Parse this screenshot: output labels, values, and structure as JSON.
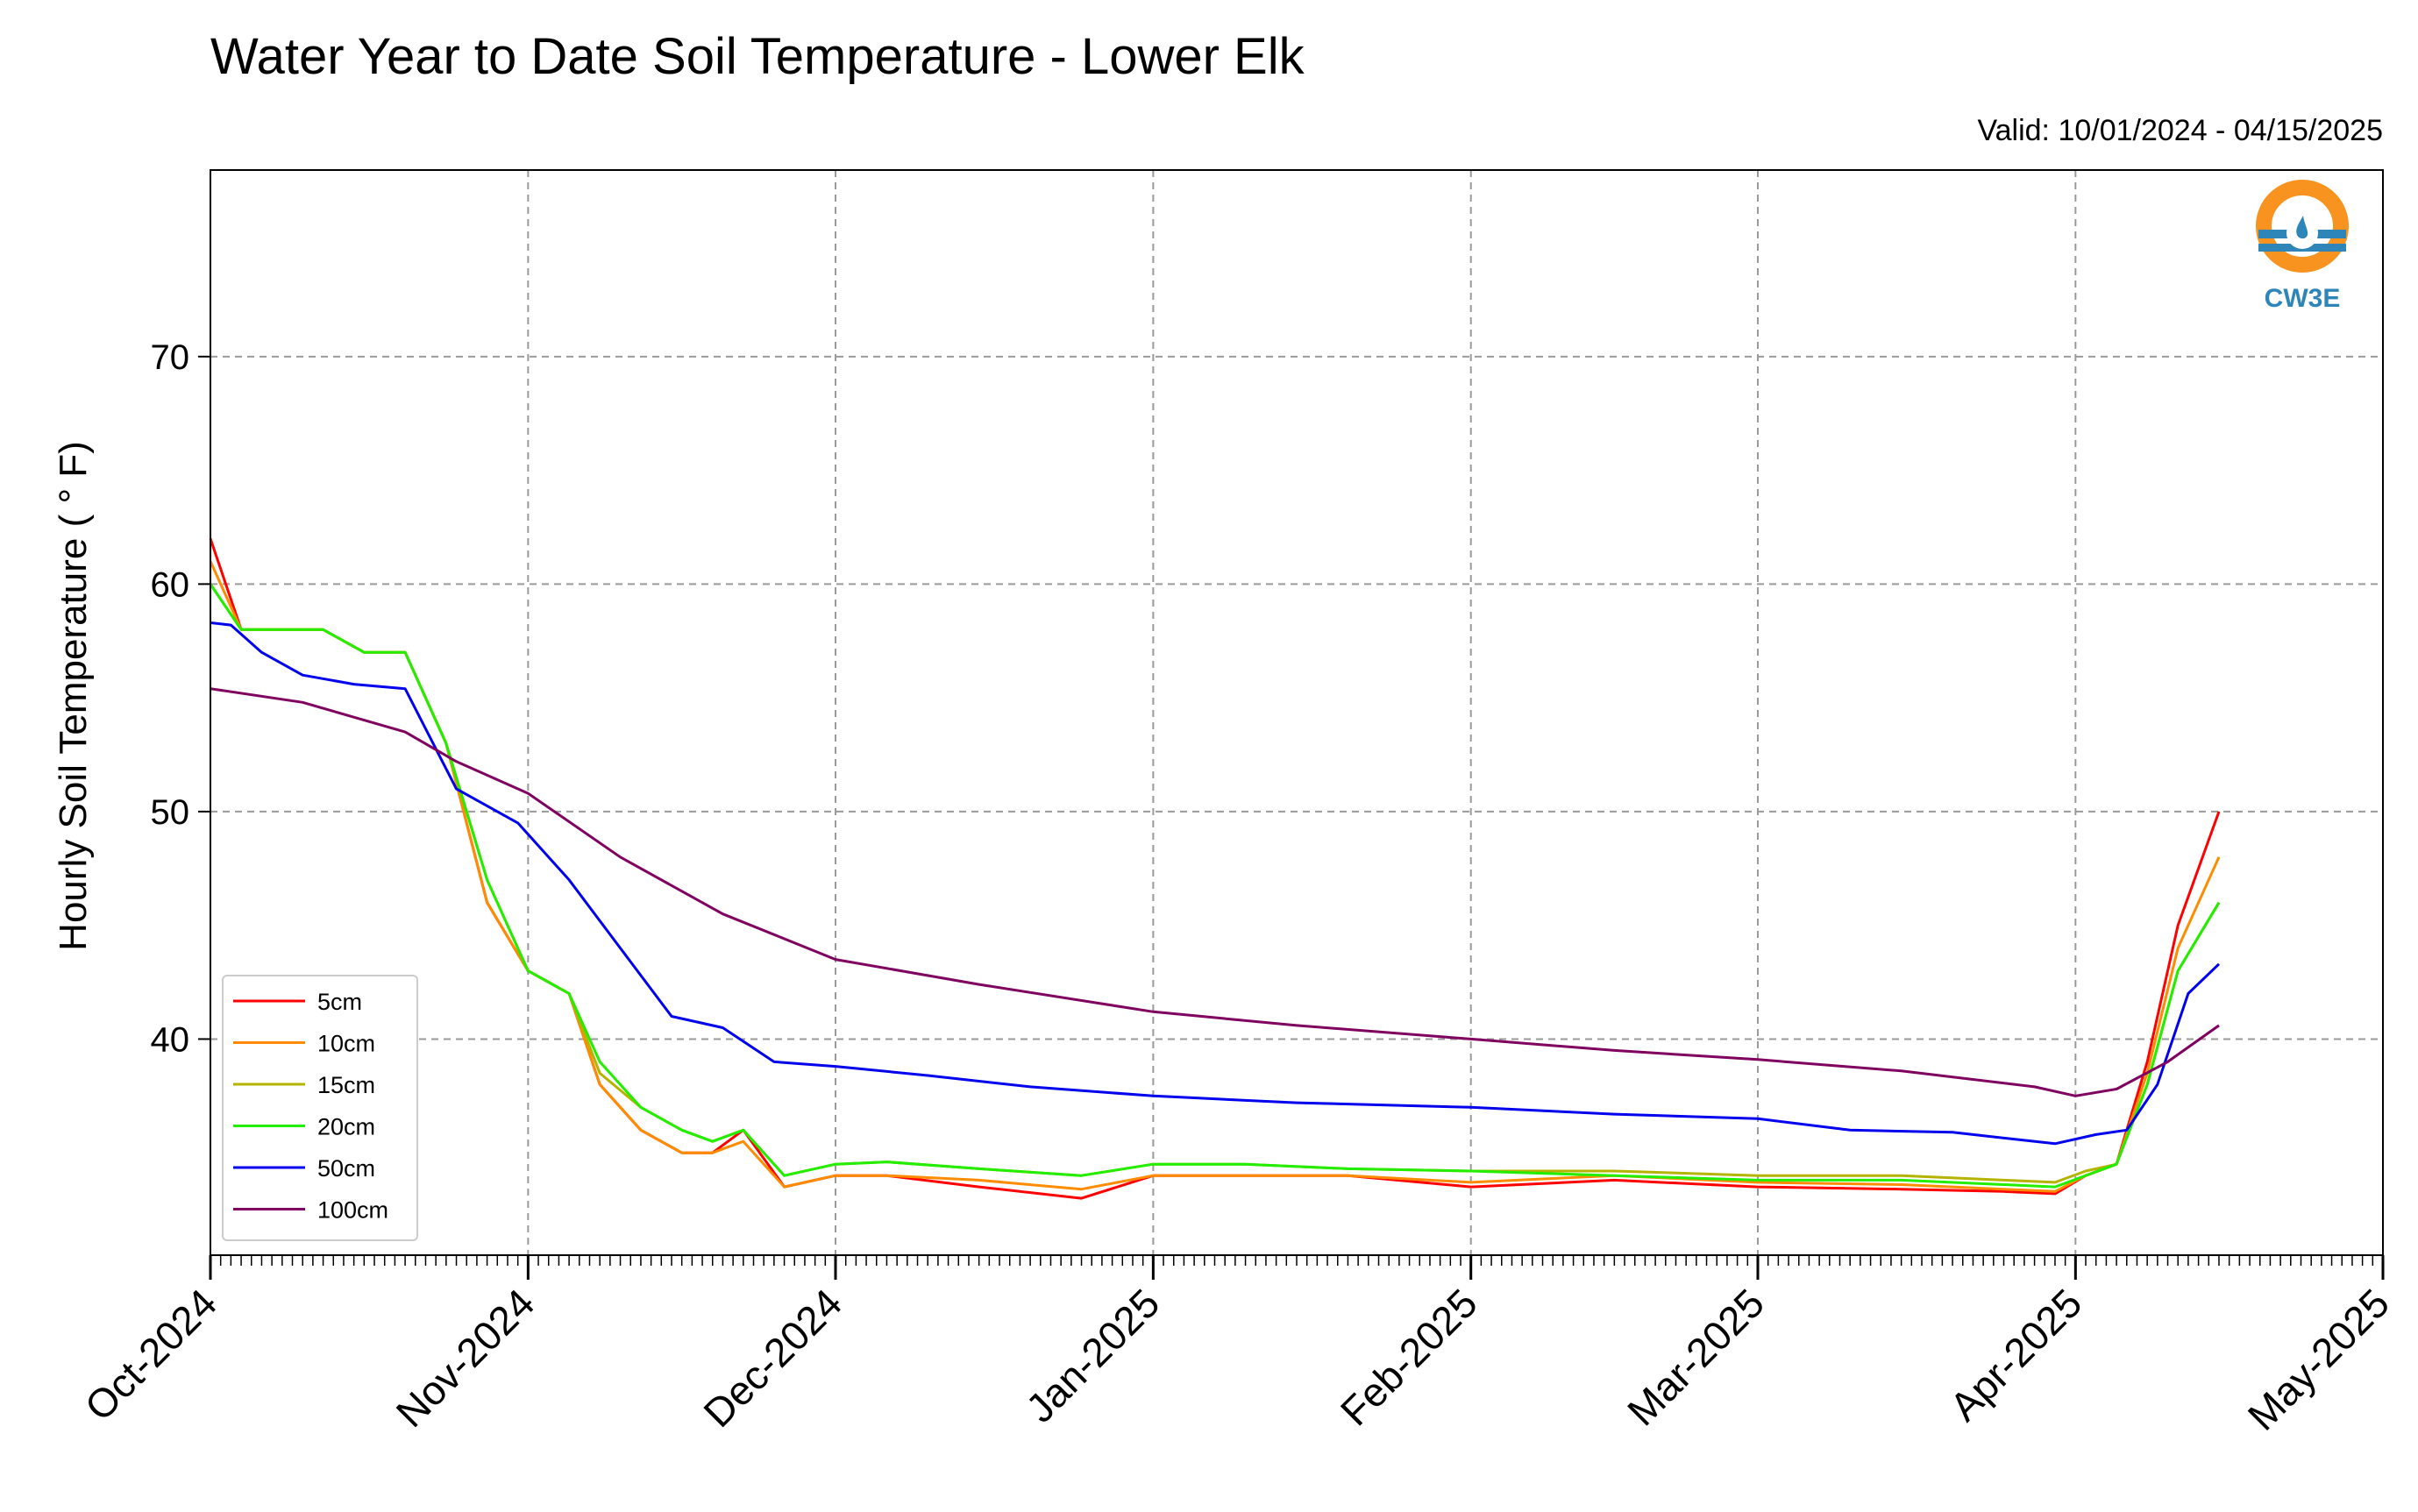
{
  "chart_data": {
    "type": "line",
    "title": "Water Year to Date Soil Temperature - Lower Elk",
    "subtitle": "Valid: 10/01/2024 - 04/15/2025",
    "ylabel": "Hourly Soil Temperature ( ° F)",
    "xlabel": "",
    "ylim": [
      30.5,
      78.2
    ],
    "xlim": [
      "2024-10-01",
      "2025-05-01"
    ],
    "yticks": [
      40,
      50,
      60,
      70
    ],
    "xticks": [
      "2024-10-01",
      "2024-11-01",
      "2024-12-01",
      "2025-01-01",
      "2025-02-01",
      "2025-03-01",
      "2025-04-01",
      "2025-05-01"
    ],
    "xtick_labels": [
      "Oct-2024",
      "Nov-2024",
      "Dec-2024",
      "Jan-2025",
      "Feb-2025",
      "Mar-2025",
      "Apr-2025",
      "May-2025"
    ],
    "grid": true,
    "legend_position": "lower-left",
    "series": [
      {
        "name": "5cm",
        "color": "#ff0000",
        "x": [
          "2024-10-01",
          "2024-10-04",
          "2024-10-08",
          "2024-10-12",
          "2024-10-16",
          "2024-10-20",
          "2024-10-24",
          "2024-10-28",
          "2024-11-01",
          "2024-11-05",
          "2024-11-08",
          "2024-11-12",
          "2024-11-16",
          "2024-11-19",
          "2024-11-22",
          "2024-11-26",
          "2024-12-01",
          "2024-12-06",
          "2024-12-15",
          "2024-12-25",
          "2025-01-01",
          "2025-01-10",
          "2025-01-20",
          "2025-02-01",
          "2025-02-15",
          "2025-03-01",
          "2025-03-15",
          "2025-03-25",
          "2025-03-30",
          "2025-04-02",
          "2025-04-05",
          "2025-04-08",
          "2025-04-11",
          "2025-04-15"
        ],
        "y": [
          62,
          58,
          58,
          58,
          57,
          57,
          53,
          46,
          43,
          42,
          38,
          36,
          35,
          35,
          36,
          33.5,
          34,
          34,
          33.5,
          33,
          34,
          34,
          34,
          33.5,
          33.8,
          33.5,
          33.4,
          33.3,
          33.2,
          34,
          34.5,
          39,
          45,
          50
        ]
      },
      {
        "name": "10cm",
        "color": "#ff8c00",
        "x": [
          "2024-10-01",
          "2024-10-04",
          "2024-10-08",
          "2024-10-12",
          "2024-10-16",
          "2024-10-20",
          "2024-10-24",
          "2024-10-28",
          "2024-11-01",
          "2024-11-05",
          "2024-11-08",
          "2024-11-12",
          "2024-11-16",
          "2024-11-19",
          "2024-11-22",
          "2024-11-26",
          "2024-12-01",
          "2024-12-06",
          "2024-12-15",
          "2024-12-25",
          "2025-01-01",
          "2025-01-10",
          "2025-01-20",
          "2025-02-01",
          "2025-02-15",
          "2025-03-01",
          "2025-03-15",
          "2025-03-25",
          "2025-03-30",
          "2025-04-02",
          "2025-04-05",
          "2025-04-08",
          "2025-04-11",
          "2025-04-15"
        ],
        "y": [
          61,
          58,
          58,
          58,
          57,
          57,
          53,
          46,
          43,
          42,
          38,
          36,
          35,
          35,
          35.5,
          33.5,
          34,
          34,
          33.8,
          33.4,
          34,
          34,
          34,
          33.7,
          34,
          33.7,
          33.6,
          33.4,
          33.3,
          34,
          34.5,
          38.5,
          44,
          48
        ]
      },
      {
        "name": "15cm",
        "color": "#b4b400",
        "x": [
          "2024-10-01",
          "2024-10-04",
          "2024-10-08",
          "2024-10-12",
          "2024-10-16",
          "2024-10-20",
          "2024-10-24",
          "2024-10-28",
          "2024-11-01",
          "2024-11-05",
          "2024-11-08",
          "2024-11-12",
          "2024-11-16",
          "2024-11-19",
          "2024-11-22",
          "2024-11-26",
          "2024-12-01",
          "2024-12-06",
          "2024-12-15",
          "2024-12-25",
          "2025-01-01",
          "2025-01-10",
          "2025-01-20",
          "2025-02-01",
          "2025-02-15",
          "2025-03-01",
          "2025-03-15",
          "2025-03-25",
          "2025-03-30",
          "2025-04-02",
          "2025-04-05",
          "2025-04-08",
          "2025-04-11",
          "2025-04-15"
        ],
        "y": [
          60,
          58,
          58,
          58,
          57,
          57,
          53,
          47,
          43,
          42,
          38.5,
          37,
          36,
          35.5,
          36,
          34,
          34.5,
          34.6,
          34.3,
          34,
          34.5,
          34.5,
          34.3,
          34.2,
          34.2,
          34,
          34,
          33.8,
          33.7,
          34.2,
          34.5,
          38,
          43,
          46
        ]
      },
      {
        "name": "20cm",
        "color": "#22ee00",
        "x": [
          "2024-10-01",
          "2024-10-04",
          "2024-10-08",
          "2024-10-12",
          "2024-10-16",
          "2024-10-20",
          "2024-10-24",
          "2024-10-28",
          "2024-11-01",
          "2024-11-05",
          "2024-11-08",
          "2024-11-12",
          "2024-11-16",
          "2024-11-19",
          "2024-11-22",
          "2024-11-26",
          "2024-12-01",
          "2024-12-06",
          "2024-12-15",
          "2024-12-25",
          "2025-01-01",
          "2025-01-10",
          "2025-01-20",
          "2025-02-01",
          "2025-02-15",
          "2025-03-01",
          "2025-03-15",
          "2025-03-25",
          "2025-03-30",
          "2025-04-02",
          "2025-04-05",
          "2025-04-08",
          "2025-04-11",
          "2025-04-15"
        ],
        "y": [
          60,
          58,
          58,
          58,
          57,
          57,
          53,
          47,
          43,
          42,
          39,
          37,
          36,
          35.5,
          36,
          34,
          34.5,
          34.6,
          34.3,
          34,
          34.5,
          34.5,
          34.3,
          34.2,
          34,
          33.8,
          33.8,
          33.6,
          33.5,
          34,
          34.5,
          38,
          43,
          46
        ]
      },
      {
        "name": "50cm",
        "color": "#0000ee",
        "x": [
          "2024-10-01",
          "2024-10-03",
          "2024-10-06",
          "2024-10-10",
          "2024-10-15",
          "2024-10-20",
          "2024-10-25",
          "2024-10-31",
          "2024-11-05",
          "2024-11-10",
          "2024-11-15",
          "2024-11-20",
          "2024-11-25",
          "2024-12-01",
          "2024-12-10",
          "2024-12-20",
          "2025-01-01",
          "2025-01-15",
          "2025-02-01",
          "2025-02-15",
          "2025-03-01",
          "2025-03-10",
          "2025-03-20",
          "2025-03-30",
          "2025-04-03",
          "2025-04-06",
          "2025-04-09",
          "2025-04-12",
          "2025-04-15"
        ],
        "y": [
          58.3,
          58.2,
          57,
          56,
          55.6,
          55.4,
          51,
          49.5,
          47,
          44,
          41,
          40.5,
          39,
          38.8,
          38.4,
          37.9,
          37.5,
          37.2,
          37,
          36.7,
          36.5,
          36,
          35.9,
          35.4,
          35.8,
          36,
          38,
          42,
          43.3
        ]
      },
      {
        "name": "100cm",
        "color": "#800060",
        "x": [
          "2024-10-01",
          "2024-10-10",
          "2024-10-20",
          "2024-10-25",
          "2024-11-01",
          "2024-11-10",
          "2024-11-20",
          "2024-12-01",
          "2024-12-15",
          "2025-01-01",
          "2025-01-15",
          "2025-02-01",
          "2025-02-15",
          "2025-03-01",
          "2025-03-15",
          "2025-03-28",
          "2025-04-01",
          "2025-04-05",
          "2025-04-10",
          "2025-04-15"
        ],
        "y": [
          55.4,
          54.8,
          53.5,
          52.2,
          50.8,
          48,
          45.5,
          43.5,
          42.4,
          41.2,
          40.6,
          40,
          39.5,
          39.1,
          38.6,
          37.9,
          37.5,
          37.8,
          39,
          40.6
        ]
      }
    ]
  },
  "logo": {
    "text": "CW3E",
    "icon": "water-drop-logo-icon",
    "colors": {
      "ring": "#f7931e",
      "band": "#2e86b8",
      "text": "#2e86b8"
    }
  },
  "colors": {
    "axes": "#000000",
    "grid": "#9a9a9a",
    "background": "#ffffff"
  }
}
